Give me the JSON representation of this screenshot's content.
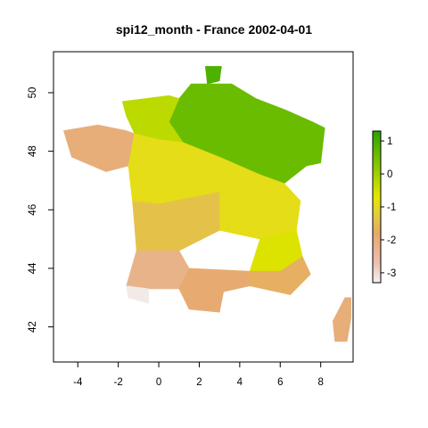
{
  "chart_data": {
    "type": "heatmap",
    "title": "spi12_month - France 2002-04-01",
    "xlabel": "",
    "ylabel": "",
    "xlim": [
      -5.2,
      9.6
    ],
    "ylim": [
      40.8,
      51.4
    ],
    "x_ticks": [
      "-4",
      "-2",
      "0",
      "2",
      "4",
      "6",
      "8"
    ],
    "x_tick_values": [
      -4,
      -2,
      0,
      2,
      4,
      6,
      8
    ],
    "y_ticks": [
      "42",
      "44",
      "46",
      "48",
      "50"
    ],
    "y_tick_values": [
      42,
      44,
      46,
      48,
      50
    ],
    "legend": {
      "placement": "right",
      "ticks": [
        "1",
        "0",
        "-1",
        "-2",
        "-3"
      ],
      "tick_values": [
        1,
        0,
        -1,
        -2,
        -3
      ],
      "range": [
        -3.3,
        1.3
      ]
    },
    "colors": {
      "stops": [
        "#f2f2f2",
        "#ecbfb0",
        "#e6a96a",
        "#e3cf3a",
        "#e6e600",
        "#a8d400",
        "#2aa300"
      ],
      "stop_values": [
        -3.3,
        -2.7,
        -1.8,
        -1.2,
        -0.7,
        -0.1,
        1.3
      ]
    },
    "grid": false,
    "grid_resolution_deg": 0.25,
    "regions_note_omitted": true,
    "regions": [
      {
        "name": "north-tip",
        "poly": [
          [
            2.3,
            50.9
          ],
          [
            3.1,
            50.9
          ],
          [
            3.0,
            50.4
          ],
          [
            2.4,
            50.3
          ]
        ],
        "value": 0.9
      },
      {
        "name": "north-east",
        "poly": [
          [
            1.6,
            50.3
          ],
          [
            3.6,
            50.3
          ],
          [
            4.8,
            49.8
          ],
          [
            6.3,
            49.4
          ],
          [
            7.6,
            49.0
          ],
          [
            8.2,
            48.8
          ],
          [
            8.0,
            47.6
          ],
          [
            7.3,
            47.5
          ],
          [
            6.2,
            46.9
          ],
          [
            5.0,
            47.2
          ],
          [
            3.0,
            47.8
          ],
          [
            1.2,
            48.3
          ],
          [
            0.5,
            49.0
          ],
          [
            1.0,
            49.8
          ]
        ],
        "value": 0.6
      },
      {
        "name": "normandy",
        "poly": [
          [
            -1.8,
            49.7
          ],
          [
            0.5,
            49.9
          ],
          [
            1.0,
            49.8
          ],
          [
            0.5,
            49.0
          ],
          [
            1.2,
            48.3
          ],
          [
            0.0,
            48.4
          ],
          [
            -1.2,
            48.6
          ],
          [
            -1.6,
            49.2
          ]
        ],
        "value": -0.3
      },
      {
        "name": "brittany",
        "poly": [
          [
            -4.7,
            48.7
          ],
          [
            -3.0,
            48.9
          ],
          [
            -1.6,
            48.7
          ],
          [
            -1.2,
            48.6
          ],
          [
            -1.5,
            47.5
          ],
          [
            -2.6,
            47.3
          ],
          [
            -4.3,
            47.8
          ]
        ],
        "value": -2.0
      },
      {
        "name": "loire",
        "poly": [
          [
            -1.5,
            47.5
          ],
          [
            -1.2,
            48.6
          ],
          [
            0.0,
            48.4
          ],
          [
            1.2,
            48.3
          ],
          [
            3.0,
            47.8
          ],
          [
            3.0,
            46.6
          ],
          [
            0.0,
            46.2
          ],
          [
            -1.3,
            46.3
          ]
        ],
        "value": -0.9
      },
      {
        "name": "center-east",
        "poly": [
          [
            3.0,
            47.8
          ],
          [
            5.0,
            47.2
          ],
          [
            6.2,
            46.9
          ],
          [
            7.0,
            46.3
          ],
          [
            6.8,
            45.3
          ],
          [
            5.0,
            45.0
          ],
          [
            3.0,
            45.3
          ],
          [
            3.0,
            46.6
          ]
        ],
        "value": -0.9
      },
      {
        "name": "atlantic-west",
        "poly": [
          [
            -1.3,
            46.3
          ],
          [
            0.0,
            46.2
          ],
          [
            3.0,
            46.6
          ],
          [
            3.0,
            45.3
          ],
          [
            1.0,
            44.6
          ],
          [
            -1.1,
            44.6
          ],
          [
            -1.2,
            45.5
          ]
        ],
        "value": -1.4
      },
      {
        "name": "alps",
        "poly": [
          [
            5.0,
            45.0
          ],
          [
            6.8,
            45.3
          ],
          [
            7.1,
            44.4
          ],
          [
            6.0,
            43.9
          ],
          [
            4.5,
            43.9
          ]
        ],
        "value": -0.6
      },
      {
        "name": "south-west",
        "poly": [
          [
            -1.1,
            44.6
          ],
          [
            1.0,
            44.6
          ],
          [
            1.5,
            44.0
          ],
          [
            1.0,
            43.3
          ],
          [
            -0.5,
            43.3
          ],
          [
            -1.6,
            43.4
          ]
        ],
        "value": -2.2
      },
      {
        "name": "pyrenees-west",
        "poly": [
          [
            -1.6,
            43.4
          ],
          [
            -0.5,
            43.3
          ],
          [
            -0.5,
            42.8
          ],
          [
            -1.5,
            43.0
          ]
        ],
        "value": -3.2
      },
      {
        "name": "languedoc",
        "poly": [
          [
            1.0,
            43.3
          ],
          [
            1.5,
            44.0
          ],
          [
            4.5,
            43.9
          ],
          [
            4.5,
            43.4
          ],
          [
            3.2,
            43.2
          ],
          [
            3.0,
            42.5
          ],
          [
            1.5,
            42.6
          ]
        ],
        "value": -1.9
      },
      {
        "name": "provence",
        "poly": [
          [
            4.5,
            43.4
          ],
          [
            4.5,
            43.9
          ],
          [
            6.0,
            43.9
          ],
          [
            7.1,
            44.4
          ],
          [
            7.5,
            43.8
          ],
          [
            6.5,
            43.1
          ]
        ],
        "value": -1.7
      },
      {
        "name": "corsica",
        "poly": [
          [
            9.2,
            43.0
          ],
          [
            9.5,
            43.0
          ],
          [
            9.5,
            42.3
          ],
          [
            9.3,
            41.5
          ],
          [
            8.7,
            41.5
          ],
          [
            8.6,
            42.2
          ]
        ],
        "value": -2.0
      }
    ]
  }
}
